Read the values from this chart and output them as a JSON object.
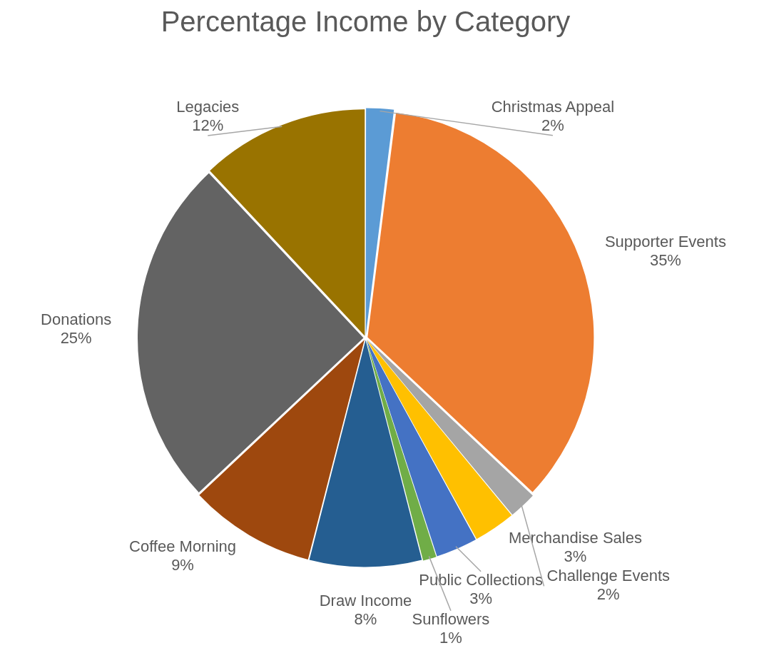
{
  "chart_data": {
    "type": "pie",
    "title": "Percentage Income by Category",
    "categories": [
      "Christmas Appeal",
      "Supporter Events",
      "Challenge Events",
      "Merchandise Sales",
      "Public Collections",
      "Sunflowers",
      "Draw Income",
      "Coffee Morning",
      "Donations",
      "Legacies"
    ],
    "values": [
      2,
      35,
      2,
      3,
      3,
      1,
      8,
      9,
      25,
      12
    ],
    "colors": [
      "#5b9bd5",
      "#ed7d31",
      "#a5a5a5",
      "#ffc000",
      "#4472c4",
      "#70ad47",
      "#255e91",
      "#9e480e",
      "#636363",
      "#997300"
    ],
    "value_labels": [
      "2%",
      "35%",
      "2%",
      "3%",
      "3%",
      "1%",
      "8%",
      "9%",
      "25%",
      "12%"
    ],
    "legend": false
  }
}
